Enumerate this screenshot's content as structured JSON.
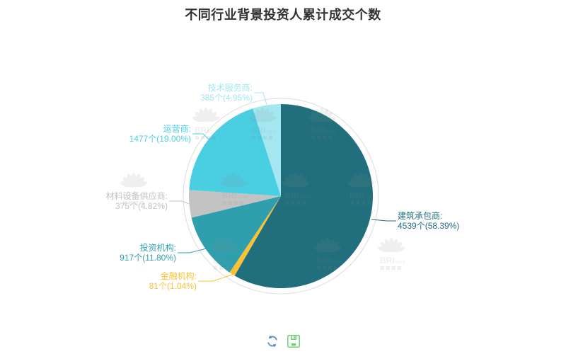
{
  "title": "不同行业背景投资人累计成交个数",
  "chart_data": {
    "type": "pie",
    "title": "不同行业背景投资人累计成交个数",
    "start_angle": "12-oclock",
    "direction": "clockwise",
    "legend_position": "none",
    "grid": false,
    "unit": "个",
    "label_format": "{name}: {value}个({percent}%)",
    "slices": [
      {
        "name": "建筑承包商",
        "value": 4539,
        "percent": "58.39",
        "color": "#216f7d"
      },
      {
        "name": "金融机构",
        "value": 81,
        "percent": "1.04",
        "color": "#fbc234"
      },
      {
        "name": "投资机构",
        "value": 917,
        "percent": "11.80",
        "color": "#309fad"
      },
      {
        "name": "材料设备供应商",
        "value": 375,
        "percent": "4.82",
        "color": "#c3c3c3"
      },
      {
        "name": "运营商",
        "value": 1477,
        "percent": "19.00",
        "color": "#49cfe1"
      },
      {
        "name": "技术服务商",
        "value": 385,
        "percent": "4.95",
        "color": "#a4e7f0"
      }
    ]
  },
  "watermark": {
    "brand": "BRI",
    "brand_sub": "data"
  },
  "toolbar": {
    "refresh_color": "#4c8fd4",
    "save_color": "#6fcf73"
  },
  "colors": {
    "title": "#333333",
    "ring": "#dcdcdc",
    "background": "#ffffff"
  }
}
